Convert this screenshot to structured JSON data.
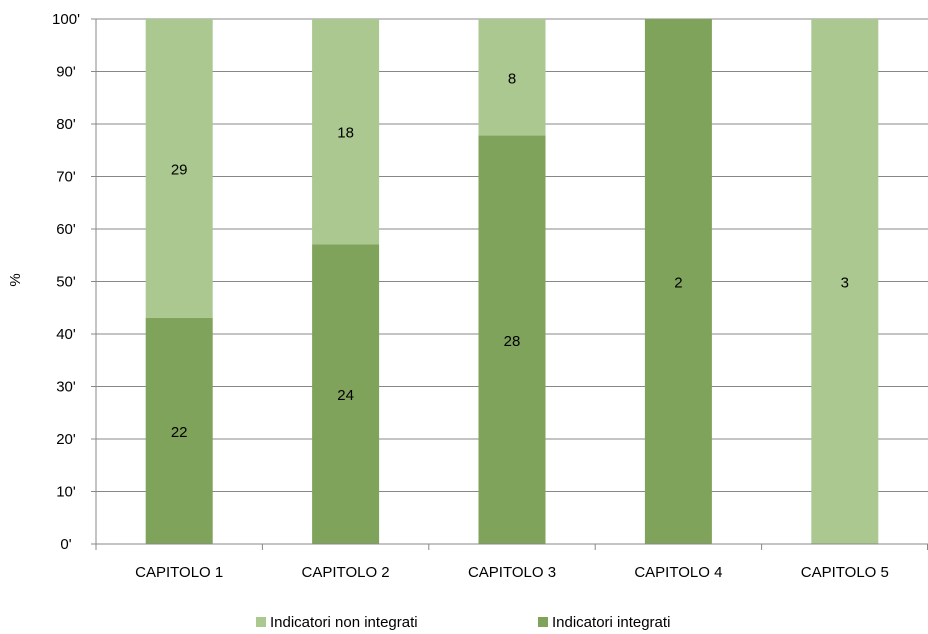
{
  "chart_data": {
    "type": "bar",
    "stacked": true,
    "categories": [
      "CAPITOLO 1",
      "CAPITOLO 2",
      "CAPITOLO 3",
      "CAPITOLO 4",
      "CAPITOLO 5"
    ],
    "series": [
      {
        "name": "Indicatori integrati",
        "color": "#7fa35a",
        "counts": [
          22,
          24,
          28,
          2,
          0
        ],
        "percent": [
          43.1,
          57.1,
          77.8,
          100,
          0
        ]
      },
      {
        "name": "Indicatori non integrati",
        "color": "#abc890",
        "counts": [
          29,
          18,
          8,
          0,
          3
        ],
        "percent": [
          56.9,
          42.9,
          22.2,
          0,
          100
        ]
      }
    ],
    "ylabel": "%",
    "ylim": [
      0,
      100
    ],
    "yticks": [
      "0%",
      "10%",
      "20%",
      "30%",
      "40%",
      "50%",
      "60%",
      "70%",
      "80%",
      "90%",
      "100%"
    ],
    "yticks_visible": [
      "0'",
      "10'",
      "20'",
      "30'",
      "40'",
      "50'",
      "60'",
      "70'",
      "80'",
      "90'",
      "100'"
    ],
    "grid": true,
    "legend": {
      "placement": "bottom",
      "entries": [
        "Indicatori non integrati",
        "Indicatori  integrati"
      ]
    },
    "gridline_color": "#888888"
  }
}
